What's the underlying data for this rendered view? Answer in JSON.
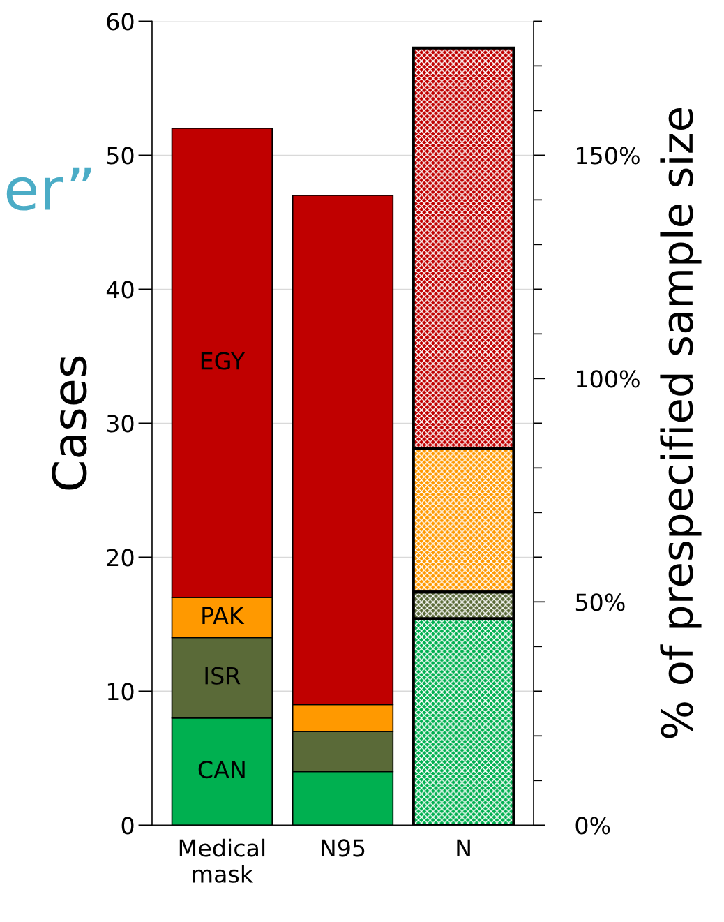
{
  "chart_data": {
    "type": "bar",
    "stacked": true,
    "ylabel": "Cases",
    "y2label": "% of prespecified sample size",
    "categories": [
      "Medical\nmask",
      "N95",
      "N"
    ],
    "series": [
      {
        "name": "CAN",
        "color": "#00b050",
        "values": [
          8,
          4,
          15.4
        ]
      },
      {
        "name": "ISR",
        "color": "#5a6a38",
        "values": [
          6,
          3,
          2
        ]
      },
      {
        "name": "PAK",
        "color": "#ff9900",
        "values": [
          3,
          2,
          10.7
        ]
      },
      {
        "name": "EGY",
        "color": "#c00000",
        "values": [
          35,
          38,
          29.9
        ]
      }
    ],
    "ylim": [
      0,
      60
    ],
    "yticks": [
      0,
      10,
      20,
      30,
      40,
      50,
      60
    ],
    "y2lim": [
      0,
      180
    ],
    "y2ticks": [
      {
        "value": 0,
        "label": "0%"
      },
      {
        "value": 10,
        "label": null
      },
      {
        "value": 20,
        "label": null
      },
      {
        "value": 30,
        "label": null
      },
      {
        "value": 40,
        "label": null
      },
      {
        "value": 50,
        "label": "50%"
      },
      {
        "value": 60,
        "label": null
      },
      {
        "value": 70,
        "label": null
      },
      {
        "value": 80,
        "label": null
      },
      {
        "value": 90,
        "label": null
      },
      {
        "value": 100,
        "label": "100%"
      },
      {
        "value": 110,
        "label": null
      },
      {
        "value": 120,
        "label": null
      },
      {
        "value": 130,
        "label": null
      },
      {
        "value": 140,
        "label": null
      },
      {
        "value": 150,
        "label": "150%"
      },
      {
        "value": 160,
        "label": null
      },
      {
        "value": 170,
        "label": null
      },
      {
        "value": 180,
        "label": null
      }
    ],
    "grid": "y",
    "legend": "left",
    "annotations": [
      "er”"
    ]
  }
}
